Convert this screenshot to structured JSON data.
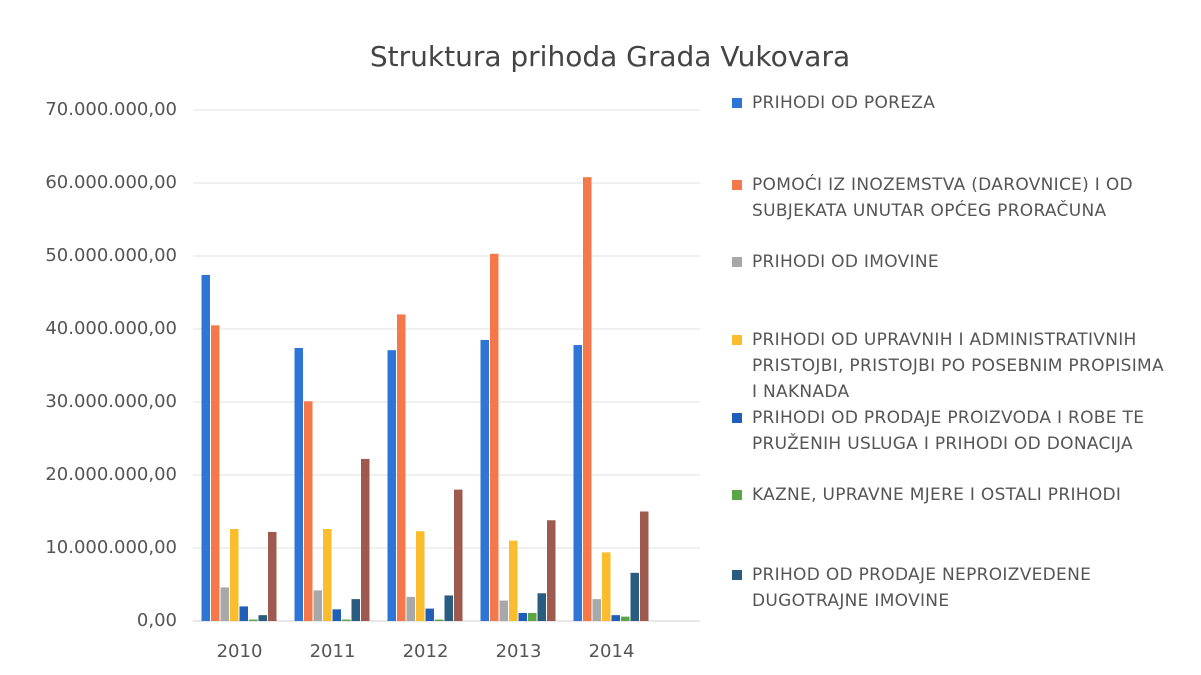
{
  "chart_data": {
    "type": "bar",
    "title": "Struktura prihoda Grada Vukovara",
    "categories": [
      "2010",
      "2011",
      "2012",
      "2013",
      "2014"
    ],
    "series": [
      {
        "name": "PRIHODI OD POREZA",
        "color": "#2e75d6",
        "values": [
          47400000,
          37400000,
          37100000,
          38500000,
          37800000
        ]
      },
      {
        "name": "POMOĆI IZ INOZEMSTVA (DAROVNICE) I OD SUBJEKATA UNUTAR OPĆEG PRORAČUNA",
        "color": "#f4784a",
        "values": [
          40500000,
          30100000,
          42000000,
          50300000,
          60800000
        ]
      },
      {
        "name": "PRIHODI OD IMOVINE",
        "color": "#a8a8a8",
        "values": [
          4600000,
          4200000,
          3300000,
          2800000,
          3000000
        ]
      },
      {
        "name": "PRIHODI OD UPRAVNIH I ADMINISTRATIVNIH PRISTOJBI, PRISTOJBI PO POSEBNIM PROPISIMA I NAKNADA",
        "color": "#fbbd2e",
        "values": [
          12600000,
          12600000,
          12300000,
          11000000,
          9400000
        ]
      },
      {
        "name": "PRIHODI OD PRODAJE PROIZVODA I ROBE TE PRUŽENIH USLUGA I PRIHODI OD DONACIJA",
        "color": "#1f5fb8",
        "values": [
          2000000,
          1600000,
          1700000,
          1100000,
          800000
        ]
      },
      {
        "name": "KAZNE, UPRAVNE MJERE I OSTALI PRIHODI",
        "color": "#5aa646",
        "values": [
          200000,
          200000,
          200000,
          1100000,
          600000
        ]
      },
      {
        "name": "PRIHOD OD PRODAJE NEPROIZVEDENE DUGOTRAJNE IMOVINE",
        "color": "#2a5c7f",
        "values": [
          800000,
          3000000,
          3500000,
          3800000,
          6600000
        ]
      },
      {
        "color": "#9e5a4e",
        "values": [
          12200000,
          22200000,
          18000000,
          13800000,
          15000000
        ]
      }
    ],
    "ylim": [
      0,
      70000000
    ],
    "yticks": [
      {
        "value": 0,
        "label": "0,00"
      },
      {
        "value": 10000000,
        "label": "10.000.000,00"
      },
      {
        "value": 20000000,
        "label": "20.000.000,00"
      },
      {
        "value": 30000000,
        "label": "30.000.000,00"
      },
      {
        "value": 40000000,
        "label": "40.000.000,00"
      },
      {
        "value": 50000000,
        "label": "50.000.000,00"
      },
      {
        "value": 60000000,
        "label": "60.000.000,00"
      },
      {
        "value": 70000000,
        "label": "70.000.000,00"
      }
    ],
    "grid": true
  }
}
